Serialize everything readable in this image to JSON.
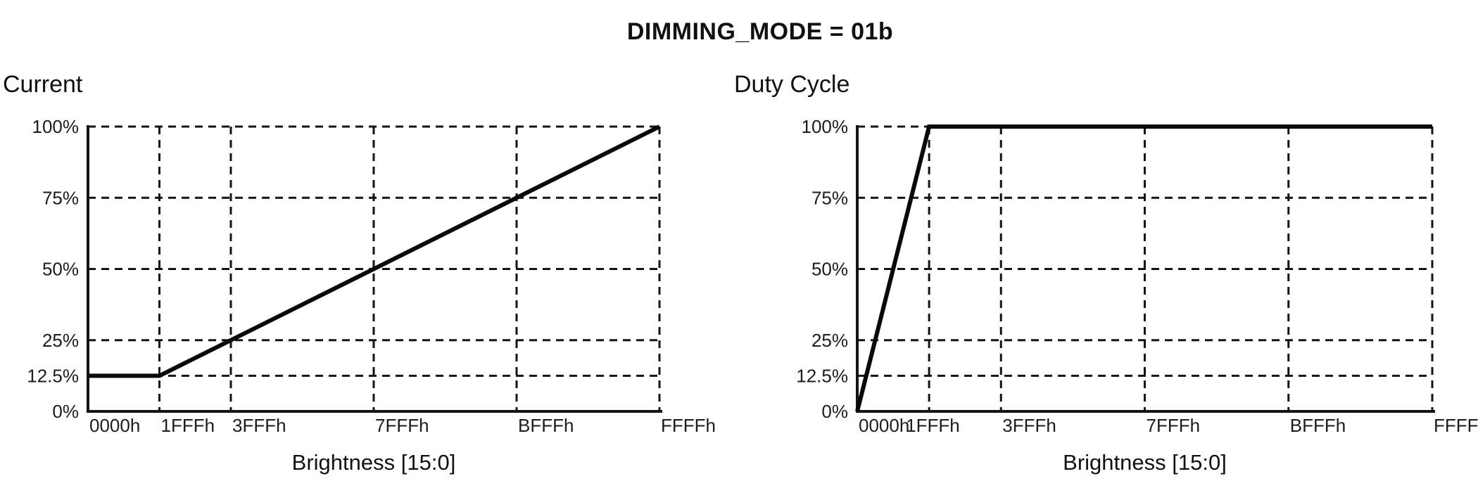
{
  "page_title": "DIMMING_MODE = 01b",
  "chart_data": [
    {
      "type": "line",
      "title": "Current",
      "xlabel": "Brightness [15:0]",
      "grid": "dashed",
      "legend": "none",
      "x_axis": {
        "tick_labels": [
          "0000h",
          "1FFFh",
          "3FFFh",
          "7FFFh",
          "BFFFh",
          "FFFFh"
        ],
        "tick_values": [
          0,
          8191,
          16383,
          32767,
          49151,
          65535
        ],
        "range": [
          0,
          65535
        ]
      },
      "y_axis": {
        "tick_labels": [
          "100%",
          "75%",
          "50%",
          "25%",
          "12.5%",
          "0%"
        ],
        "tick_values": [
          100,
          75,
          50,
          25,
          12.5,
          0
        ],
        "range": [
          0,
          100
        ]
      },
      "series": [
        {
          "name": "Current",
          "points": [
            [
              0,
              12.5
            ],
            [
              8191,
              12.5
            ],
            [
              65535,
              100
            ]
          ]
        }
      ]
    },
    {
      "type": "line",
      "title": "Duty Cycle",
      "xlabel": "Brightness [15:0]",
      "grid": "dashed",
      "legend": "none",
      "x_axis": {
        "tick_labels": [
          "0000h",
          "1FFFh",
          "3FFFh",
          "7FFFh",
          "BFFFh",
          "FFFFh"
        ],
        "tick_values": [
          0,
          8191,
          16383,
          32767,
          49151,
          65535
        ],
        "range": [
          0,
          65535
        ]
      },
      "y_axis": {
        "tick_labels": [
          "100%",
          "75%",
          "50%",
          "25%",
          "12.5%",
          "0%"
        ],
        "tick_values": [
          100,
          75,
          50,
          25,
          12.5,
          0
        ],
        "range": [
          0,
          100
        ]
      },
      "series": [
        {
          "name": "Duty Cycle",
          "points": [
            [
              0,
              0
            ],
            [
              8191,
              100
            ],
            [
              65535,
              100
            ]
          ]
        }
      ]
    }
  ]
}
